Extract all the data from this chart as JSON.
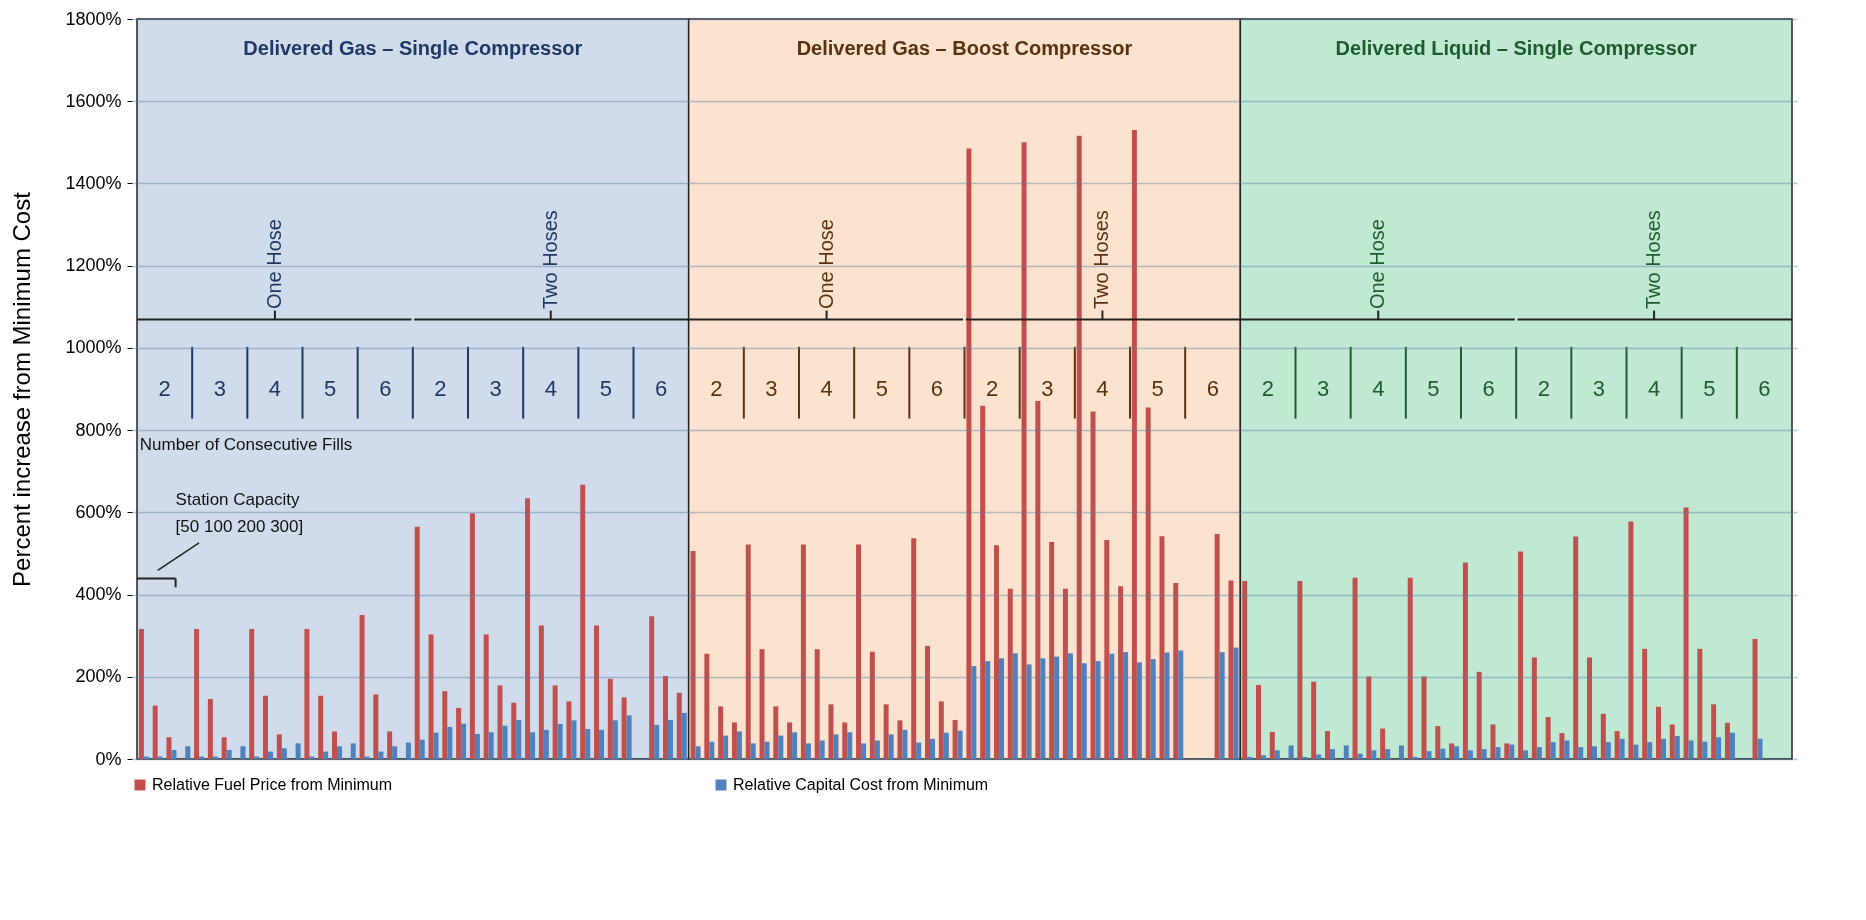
{
  "chart_data": {
    "type": "bar",
    "ylabel": "Percent increase from Minimum Cost",
    "categories": [
      null,
      null,
      null,
      null,
      null,
      null,
      null,
      null,
      null,
      null,
      null,
      null,
      null,
      null,
      null,
      null,
      null,
      null,
      null,
      null,
      null,
      null,
      null,
      null,
      null,
      null,
      null,
      null,
      null,
      null,
      null,
      null,
      null,
      null,
      null,
      null,
      null,
      null,
      null,
      null,
      null,
      null,
      null,
      null,
      null,
      null,
      null,
      null,
      null,
      null,
      null,
      null,
      null,
      null,
      null,
      null,
      null,
      null,
      null,
      null,
      null,
      null,
      null,
      null,
      null,
      null,
      null,
      null,
      null,
      null,
      null,
      null,
      null,
      null,
      null,
      null,
      null,
      null,
      null,
      null,
      null,
      null,
      null,
      null,
      null,
      null,
      null,
      null,
      null,
      null,
      null,
      null,
      null,
      null,
      null,
      null,
      null,
      null,
      null,
      null,
      null,
      null,
      null,
      null,
      null,
      null,
      null,
      null,
      null,
      null,
      null,
      null,
      null,
      null,
      null,
      null,
      null,
      null,
      null,
      null
    ],
    "series": [
      {
        "name": "Relative Fuel Price from Minimum",
        "color": "#c0504d",
        "values": [
          316,
          130,
          53,
          null,
          316,
          146,
          53,
          null,
          316,
          154,
          60,
          null,
          316,
          154,
          67,
          null,
          350,
          157,
          67,
          null,
          565,
          303,
          165,
          124,
          598,
          303,
          179,
          137,
          634,
          325,
          179,
          140,
          667,
          325,
          195,
          150,
          null,
          347,
          202,
          161,
          506,
          256,
          128,
          89,
          522,
          267,
          128,
          89,
          522,
          267,
          133,
          89,
          522,
          261,
          133,
          94,
          537,
          275,
          140,
          95,
          1485,
          859,
          520,
          414,
          1500,
          871,
          528,
          414,
          1516,
          845,
          533,
          420,
          1530,
          855,
          542,
          428,
          null,
          null,
          547,
          434,
          433,
          180,
          66,
          null,
          433,
          188,
          68,
          null,
          441,
          201,
          74,
          null,
          441,
          201,
          80,
          38,
          478,
          212,
          84,
          38,
          505,
          247,
          102,
          63,
          541,
          247,
          110,
          68,
          578,
          268,
          127,
          84,
          612,
          268,
          133,
          88,
          null,
          292,
          null,
          null
        ]
      },
      {
        "name": "Relative Capital Cost from Minimum",
        "color": "#4f81bd",
        "values": [
          6,
          6,
          22,
          31,
          6,
          6,
          22,
          31,
          6,
          18,
          26,
          38,
          6,
          18,
          31,
          38,
          6,
          18,
          31,
          40,
          47,
          64,
          78,
          86,
          61,
          65,
          81,
          95,
          65,
          71,
          85,
          94,
          73,
          71,
          94,
          106,
          null,
          83,
          95,
          112,
          31,
          42,
          57,
          67,
          38,
          42,
          57,
          65,
          38,
          45,
          60,
          65,
          38,
          45,
          60,
          71,
          40,
          49,
          64,
          69,
          226,
          238,
          245,
          257,
          230,
          245,
          249,
          257,
          233,
          238,
          256,
          260,
          235,
          243,
          259,
          264,
          null,
          null,
          260,
          271,
          5,
          9,
          21,
          33,
          5,
          11,
          24,
          33,
          13,
          21,
          24,
          33,
          5,
          19,
          25,
          31,
          21,
          24,
          29,
          35,
          21,
          29,
          41,
          45,
          29,
          31,
          41,
          49,
          35,
          41,
          49,
          56,
          45,
          42,
          53,
          64,
          null,
          49,
          null,
          null
        ]
      }
    ],
    "ylim": [
      0,
      1800
    ],
    "yticks": [
      {
        "value": 0,
        "label": "0%"
      },
      {
        "value": 200,
        "label": "200%"
      },
      {
        "value": 400,
        "label": "400%"
      },
      {
        "value": 600,
        "label": "600%"
      },
      {
        "value": 800,
        "label": "800%"
      },
      {
        "value": 1000,
        "label": "1000%"
      },
      {
        "value": 1200,
        "label": "1200%"
      },
      {
        "value": 1400,
        "label": "1400%"
      },
      {
        "value": 1600,
        "label": "1600%"
      },
      {
        "value": 1800,
        "label": "1800%"
      }
    ],
    "grid": "y",
    "legend": "bottom",
    "annotations": [
      "Delivered Gas – Single Compressor",
      "Delivered Gas – Boost Compressor",
      "Delivered Liquid – Single Compressor",
      "One Hose",
      "Two Hoses",
      "2",
      "3",
      "4",
      "5",
      "6",
      "2",
      "3",
      "4",
      "5",
      "6",
      "One Hose",
      "Two Hoses",
      "2",
      "3",
      "4",
      "5",
      "6",
      "2",
      "3",
      "4",
      "5",
      "6",
      "One Hose",
      "Two Hoses",
      "2",
      "3",
      "4",
      "5",
      "6",
      "2",
      "3",
      "4",
      "5",
      "6",
      "Number of Consecutive Fills",
      "Station Capacity",
      "[50 100 200 300]"
    ]
  }
}
